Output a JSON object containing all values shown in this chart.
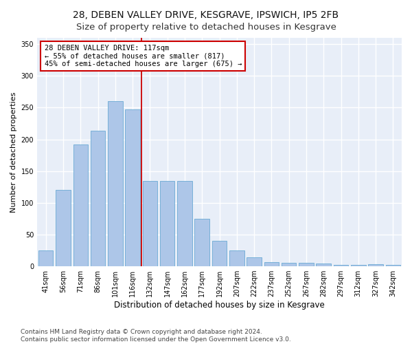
{
  "title1": "28, DEBEN VALLEY DRIVE, KESGRAVE, IPSWICH, IP5 2FB",
  "title2": "Size of property relative to detached houses in Kesgrave",
  "xlabel": "Distribution of detached houses by size in Kesgrave",
  "ylabel": "Number of detached properties",
  "categories": [
    "41sqm",
    "56sqm",
    "71sqm",
    "86sqm",
    "101sqm",
    "116sqm",
    "132sqm",
    "147sqm",
    "162sqm",
    "177sqm",
    "192sqm",
    "207sqm",
    "222sqm",
    "237sqm",
    "252sqm",
    "267sqm",
    "282sqm",
    "297sqm",
    "312sqm",
    "327sqm",
    "342sqm"
  ],
  "values": [
    25,
    120,
    192,
    214,
    260,
    247,
    135,
    135,
    135,
    75,
    40,
    25,
    14,
    7,
    6,
    6,
    4,
    2,
    2,
    3,
    2
  ],
  "bar_color": "#adc6e8",
  "bar_edge_color": "#6aaad4",
  "vline_x_index": 5.5,
  "vline_color": "#cc0000",
  "annotation_line1": "28 DEBEN VALLEY DRIVE: 117sqm",
  "annotation_line2": "← 55% of detached houses are smaller (817)",
  "annotation_line3": "45% of semi-detached houses are larger (675) →",
  "annotation_box_color": "#ffffff",
  "annotation_box_edge": "#cc0000",
  "ylim": [
    0,
    360
  ],
  "yticks": [
    0,
    50,
    100,
    150,
    200,
    250,
    300,
    350
  ],
  "footer": "Contains HM Land Registry data © Crown copyright and database right 2024.\nContains public sector information licensed under the Open Government Licence v3.0.",
  "fig_background_color": "#ffffff",
  "axes_background_color": "#e8eef8",
  "grid_color": "#ffffff",
  "title1_fontsize": 10,
  "title2_fontsize": 9.5,
  "xlabel_fontsize": 8.5,
  "ylabel_fontsize": 8,
  "tick_fontsize": 7,
  "footer_fontsize": 6.5,
  "annotation_fontsize": 7.5
}
